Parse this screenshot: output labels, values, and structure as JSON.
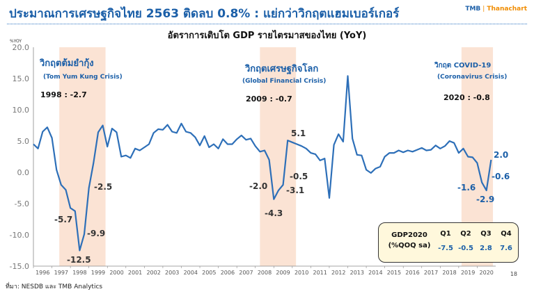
{
  "header": {
    "title": "ประมาณการเศรษฐกิจไทย 2563 ติดลบ 0.8% : แย่กว่าวิกฤตแฮมเบอร์เกอร์",
    "logo_tmb": "TMB",
    "logo_thanachart": "Thanachart"
  },
  "source": "ที่มา: NESDB และ TMB Analytics",
  "page_number": "18",
  "colors": {
    "line": "#2d6fb8",
    "shade": "#fbe3d4",
    "text_blue": "#1b5fa8",
    "box_fill": "#fff8dc"
  },
  "gdp_box": {
    "label_line1": "GDP2020",
    "label_line2": "(%QOQ sa)",
    "quarters": [
      "Q1",
      "Q2",
      "Q3",
      "Q4"
    ],
    "values": [
      "-7.5",
      "-0.5",
      "2.8",
      "7.6"
    ]
  },
  "chart_data": {
    "type": "line",
    "title": "อัตราการเติบโต GDP รายไตรมาสของไทย (YoY)",
    "ylabel": "%YOY",
    "xlabel": "",
    "ylim": [
      -15,
      20
    ],
    "xlim": [
      1996,
      2021
    ],
    "y_ticks": [
      "20.0",
      "15.0",
      "10.0",
      "5.0",
      "0.0",
      "-5.0",
      "-10.0",
      "-15.0"
    ],
    "x_ticks": [
      "1996",
      "1997",
      "1998",
      "1999",
      "2000",
      "2001",
      "2002",
      "2003",
      "2004",
      "2005",
      "2006",
      "2007",
      "2008",
      "2009",
      "2010",
      "2011",
      "2012",
      "2013",
      "2014",
      "2015",
      "2016",
      "2017",
      "2018",
      "2019",
      "2020"
    ],
    "grid": true,
    "shaded_regions": [
      [
        1997.4,
        1999.9
      ],
      [
        2008.25,
        2010.2
      ],
      [
        2019.15,
        2020.85
      ]
    ],
    "crises": [
      {
        "name": "วิกฤตต้มยำกุ้ง",
        "sub": "(Tom Yum Kung Crisis)",
        "value_label": "1998 : -2.7"
      },
      {
        "name": "วิกฤตเศรษฐกิจโลก",
        "sub": "(Global Financial Crisis)",
        "value_label": "2009 : -0.7"
      },
      {
        "name": "วิกฤต COVID-19",
        "sub": "(Coronavirus Crisis)",
        "value_label": "2020 : -0.8"
      }
    ],
    "annotations": [
      "-5.7",
      "-12.5",
      "-9.9",
      "-2.5",
      "-2.0",
      "-4.3",
      "-3.1",
      "-0.5",
      "5.1",
      "2.0",
      "-0.6",
      "-1.6",
      "-2.9"
    ],
    "series": [
      {
        "x": [
          1996.0,
          1996.25,
          1996.5,
          1996.75,
          1997.0,
          1997.25,
          1997.5,
          1997.75,
          1998.0,
          1998.25,
          1998.5,
          1998.75,
          1999.0,
          1999.25,
          1999.5,
          1999.75,
          2000.0,
          2000.25,
          2000.5,
          2000.75,
          2001.0,
          2001.25,
          2001.5,
          2001.75,
          2002.0,
          2002.25,
          2002.5,
          2002.75,
          2003.0,
          2003.25,
          2003.5,
          2003.75,
          2004.0,
          2004.25,
          2004.5,
          2004.75,
          2005.0,
          2005.25,
          2005.5,
          2005.75,
          2006.0,
          2006.25,
          2006.5,
          2006.75,
          2007.0,
          2007.25,
          2007.5,
          2007.75,
          2008.0,
          2008.25,
          2008.5,
          2008.75,
          2009.0,
          2009.25,
          2009.5,
          2009.75,
          2010.0,
          2010.25,
          2010.5,
          2010.75,
          2011.0,
          2011.25,
          2011.5,
          2011.75,
          2012.0,
          2012.25,
          2012.5,
          2012.75,
          2013.0,
          2013.25,
          2013.5,
          2013.75,
          2014.0,
          2014.25,
          2014.5,
          2014.75,
          2015.0,
          2015.25,
          2015.5,
          2015.75,
          2016.0,
          2016.25,
          2016.5,
          2016.75,
          2017.0,
          2017.25,
          2017.5,
          2017.75,
          2018.0,
          2018.25,
          2018.5,
          2018.75,
          2019.0,
          2019.25,
          2019.5,
          2019.75,
          2020.0,
          2020.25,
          2020.5,
          2020.75
        ],
        "y": [
          4.5,
          3.8,
          6.5,
          7.2,
          5.5,
          0.4,
          -2.0,
          -2.8,
          -5.7,
          -6.2,
          -12.5,
          -9.9,
          -2.5,
          1.5,
          6.4,
          7.5,
          4.1,
          7.0,
          6.4,
          2.5,
          2.7,
          2.3,
          3.8,
          3.5,
          4.0,
          4.5,
          6.3,
          6.9,
          6.8,
          7.6,
          6.5,
          6.3,
          7.8,
          6.5,
          6.3,
          5.6,
          4.3,
          5.8,
          4.0,
          4.5,
          3.8,
          5.3,
          4.5,
          4.5,
          5.3,
          5.9,
          5.2,
          5.4,
          4.2,
          3.3,
          3.5,
          2.0,
          -4.3,
          -2.9,
          -2.0,
          5.1,
          4.8,
          4.5,
          4.2,
          3.8,
          3.1,
          2.9,
          1.9,
          2.2,
          -4.1,
          4.4,
          6.1,
          4.9,
          15.4,
          5.4,
          2.8,
          2.7,
          0.4,
          -0.1,
          0.6,
          0.9,
          2.5,
          3.1,
          3.1,
          3.5,
          3.2,
          3.5,
          3.3,
          3.6,
          3.9,
          3.5,
          3.6,
          4.3,
          3.8,
          4.2,
          5.0,
          4.7,
          3.1,
          3.8,
          2.5,
          2.4,
          1.5,
          -1.6,
          -2.9,
          2.0
        ]
      }
    ]
  }
}
